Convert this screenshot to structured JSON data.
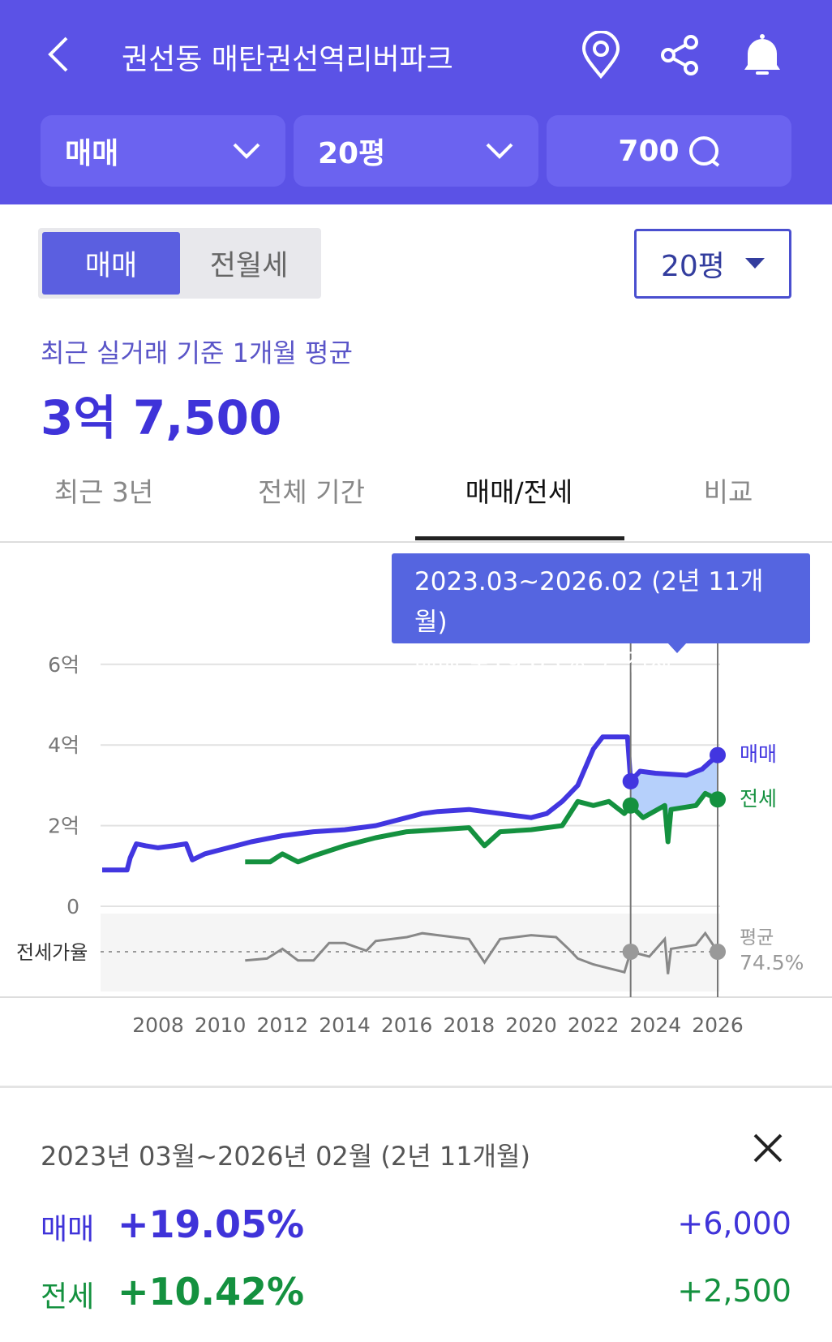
{
  "header": {
    "title": "권선동 매탄권선역리버파크",
    "filters": [
      {
        "label": "매매"
      },
      {
        "label": "20평"
      }
    ],
    "search_label": "700"
  },
  "segment": {
    "options": [
      "매매",
      "전월세"
    ],
    "selected": "매매",
    "size_select": "20평"
  },
  "price": {
    "caption": "최근 실거래 기준 1개월 평균",
    "value": "3억 7,500"
  },
  "tabs": [
    "최근 3년",
    "전체 기간",
    "매매/전세",
    "비교"
  ],
  "active_tab": "매매/전세",
  "tooltip": {
    "period": "2023.03~2026.02 (2년 11개월)",
    "sale": "매매 +19.05%",
    "sep": "/",
    "jeonse": "전세 +10.42%"
  },
  "colors": {
    "brand": "#5b52e6",
    "sale": "#4236e0",
    "jeonse": "#14913f",
    "ratio": "#888888"
  },
  "chart_data": {
    "type": "line",
    "yticks": [
      "6억",
      "4억",
      "2억",
      "0"
    ],
    "ytick_values": [
      6,
      4,
      2,
      0
    ],
    "xticks": [
      "2008",
      "2010",
      "2012",
      "2014",
      "2016",
      "2018",
      "2020",
      "2022",
      "2024",
      "2026"
    ],
    "xtick_values": [
      2008,
      2010,
      2012,
      2014,
      2016,
      2018,
      2020,
      2022,
      2024,
      2026
    ],
    "unit": "억",
    "series": [
      {
        "name": "매매",
        "points": [
          [
            2006.2,
            0.9
          ],
          [
            2007.0,
            0.9
          ],
          [
            2007.1,
            1.2
          ],
          [
            2007.3,
            1.55
          ],
          [
            2007.6,
            1.5
          ],
          [
            2008,
            1.45
          ],
          [
            2008.5,
            1.5
          ],
          [
            2008.9,
            1.55
          ],
          [
            2009.1,
            1.15
          ],
          [
            2009.5,
            1.3
          ],
          [
            2010,
            1.4
          ],
          [
            2011,
            1.6
          ],
          [
            2012,
            1.75
          ],
          [
            2013,
            1.85
          ],
          [
            2014,
            1.9
          ],
          [
            2015,
            2.0
          ],
          [
            2016,
            2.2
          ],
          [
            2016.5,
            2.3
          ],
          [
            2017,
            2.35
          ],
          [
            2018,
            2.4
          ],
          [
            2019,
            2.3
          ],
          [
            2020,
            2.2
          ],
          [
            2020.5,
            2.3
          ],
          [
            2021,
            2.6
          ],
          [
            2021.5,
            3.0
          ],
          [
            2022,
            3.9
          ],
          [
            2022.3,
            4.2
          ],
          [
            2023.1,
            4.2
          ],
          [
            2023.2,
            3.1
          ],
          [
            2023.5,
            3.35
          ],
          [
            2024,
            3.3
          ],
          [
            2025,
            3.25
          ],
          [
            2025.5,
            3.4
          ],
          [
            2026,
            3.75
          ]
        ]
      },
      {
        "name": "전세",
        "points": [
          [
            2010.8,
            1.1
          ],
          [
            2011.6,
            1.1
          ],
          [
            2012,
            1.3
          ],
          [
            2012.5,
            1.1
          ],
          [
            2013,
            1.25
          ],
          [
            2014,
            1.5
          ],
          [
            2015,
            1.7
          ],
          [
            2016,
            1.85
          ],
          [
            2017,
            1.9
          ],
          [
            2018,
            1.95
          ],
          [
            2018.5,
            1.5
          ],
          [
            2019,
            1.85
          ],
          [
            2020,
            1.9
          ],
          [
            2021,
            2.0
          ],
          [
            2021.5,
            2.6
          ],
          [
            2022,
            2.5
          ],
          [
            2022.5,
            2.6
          ],
          [
            2023,
            2.3
          ],
          [
            2023.2,
            2.5
          ],
          [
            2023.6,
            2.2
          ],
          [
            2024.3,
            2.5
          ],
          [
            2024.4,
            1.6
          ],
          [
            2024.5,
            2.4
          ],
          [
            2025.3,
            2.5
          ],
          [
            2025.6,
            2.8
          ],
          [
            2026,
            2.65
          ]
        ]
      }
    ],
    "ratio": {
      "label": "전세가율",
      "avg_label": "평균",
      "avg": "74.5%",
      "avg_value": 74.5,
      "points": [
        [
          2010.8,
          70
        ],
        [
          2011.5,
          71
        ],
        [
          2012,
          76
        ],
        [
          2012.5,
          70
        ],
        [
          2013,
          70
        ],
        [
          2013.5,
          79
        ],
        [
          2014,
          79
        ],
        [
          2014.7,
          75
        ],
        [
          2015,
          80
        ],
        [
          2016,
          82
        ],
        [
          2016.5,
          84
        ],
        [
          2017,
          83
        ],
        [
          2018,
          81
        ],
        [
          2018.5,
          69
        ],
        [
          2019,
          81
        ],
        [
          2020,
          83
        ],
        [
          2020.8,
          82
        ],
        [
          2021.2,
          76
        ],
        [
          2021.5,
          71
        ],
        [
          2022,
          68
        ],
        [
          2022.5,
          66
        ],
        [
          2023,
          64
        ],
        [
          2023.2,
          74.5
        ],
        [
          2023.8,
          72
        ],
        [
          2024.3,
          81
        ],
        [
          2024.4,
          63
        ],
        [
          2024.5,
          76
        ],
        [
          2025.3,
          78
        ],
        [
          2025.6,
          84
        ],
        [
          2026,
          74.5
        ]
      ]
    },
    "selection": [
      2023.2,
      2026.0
    ]
  },
  "summary": {
    "period": "2023년 03월~2026년 02월 (2년 11개월)",
    "rows": [
      {
        "label": "매매",
        "pct": "+19.05%",
        "amount": "+6,000"
      },
      {
        "label": "전세",
        "pct": "+10.42%",
        "amount": "+2,500"
      }
    ]
  }
}
